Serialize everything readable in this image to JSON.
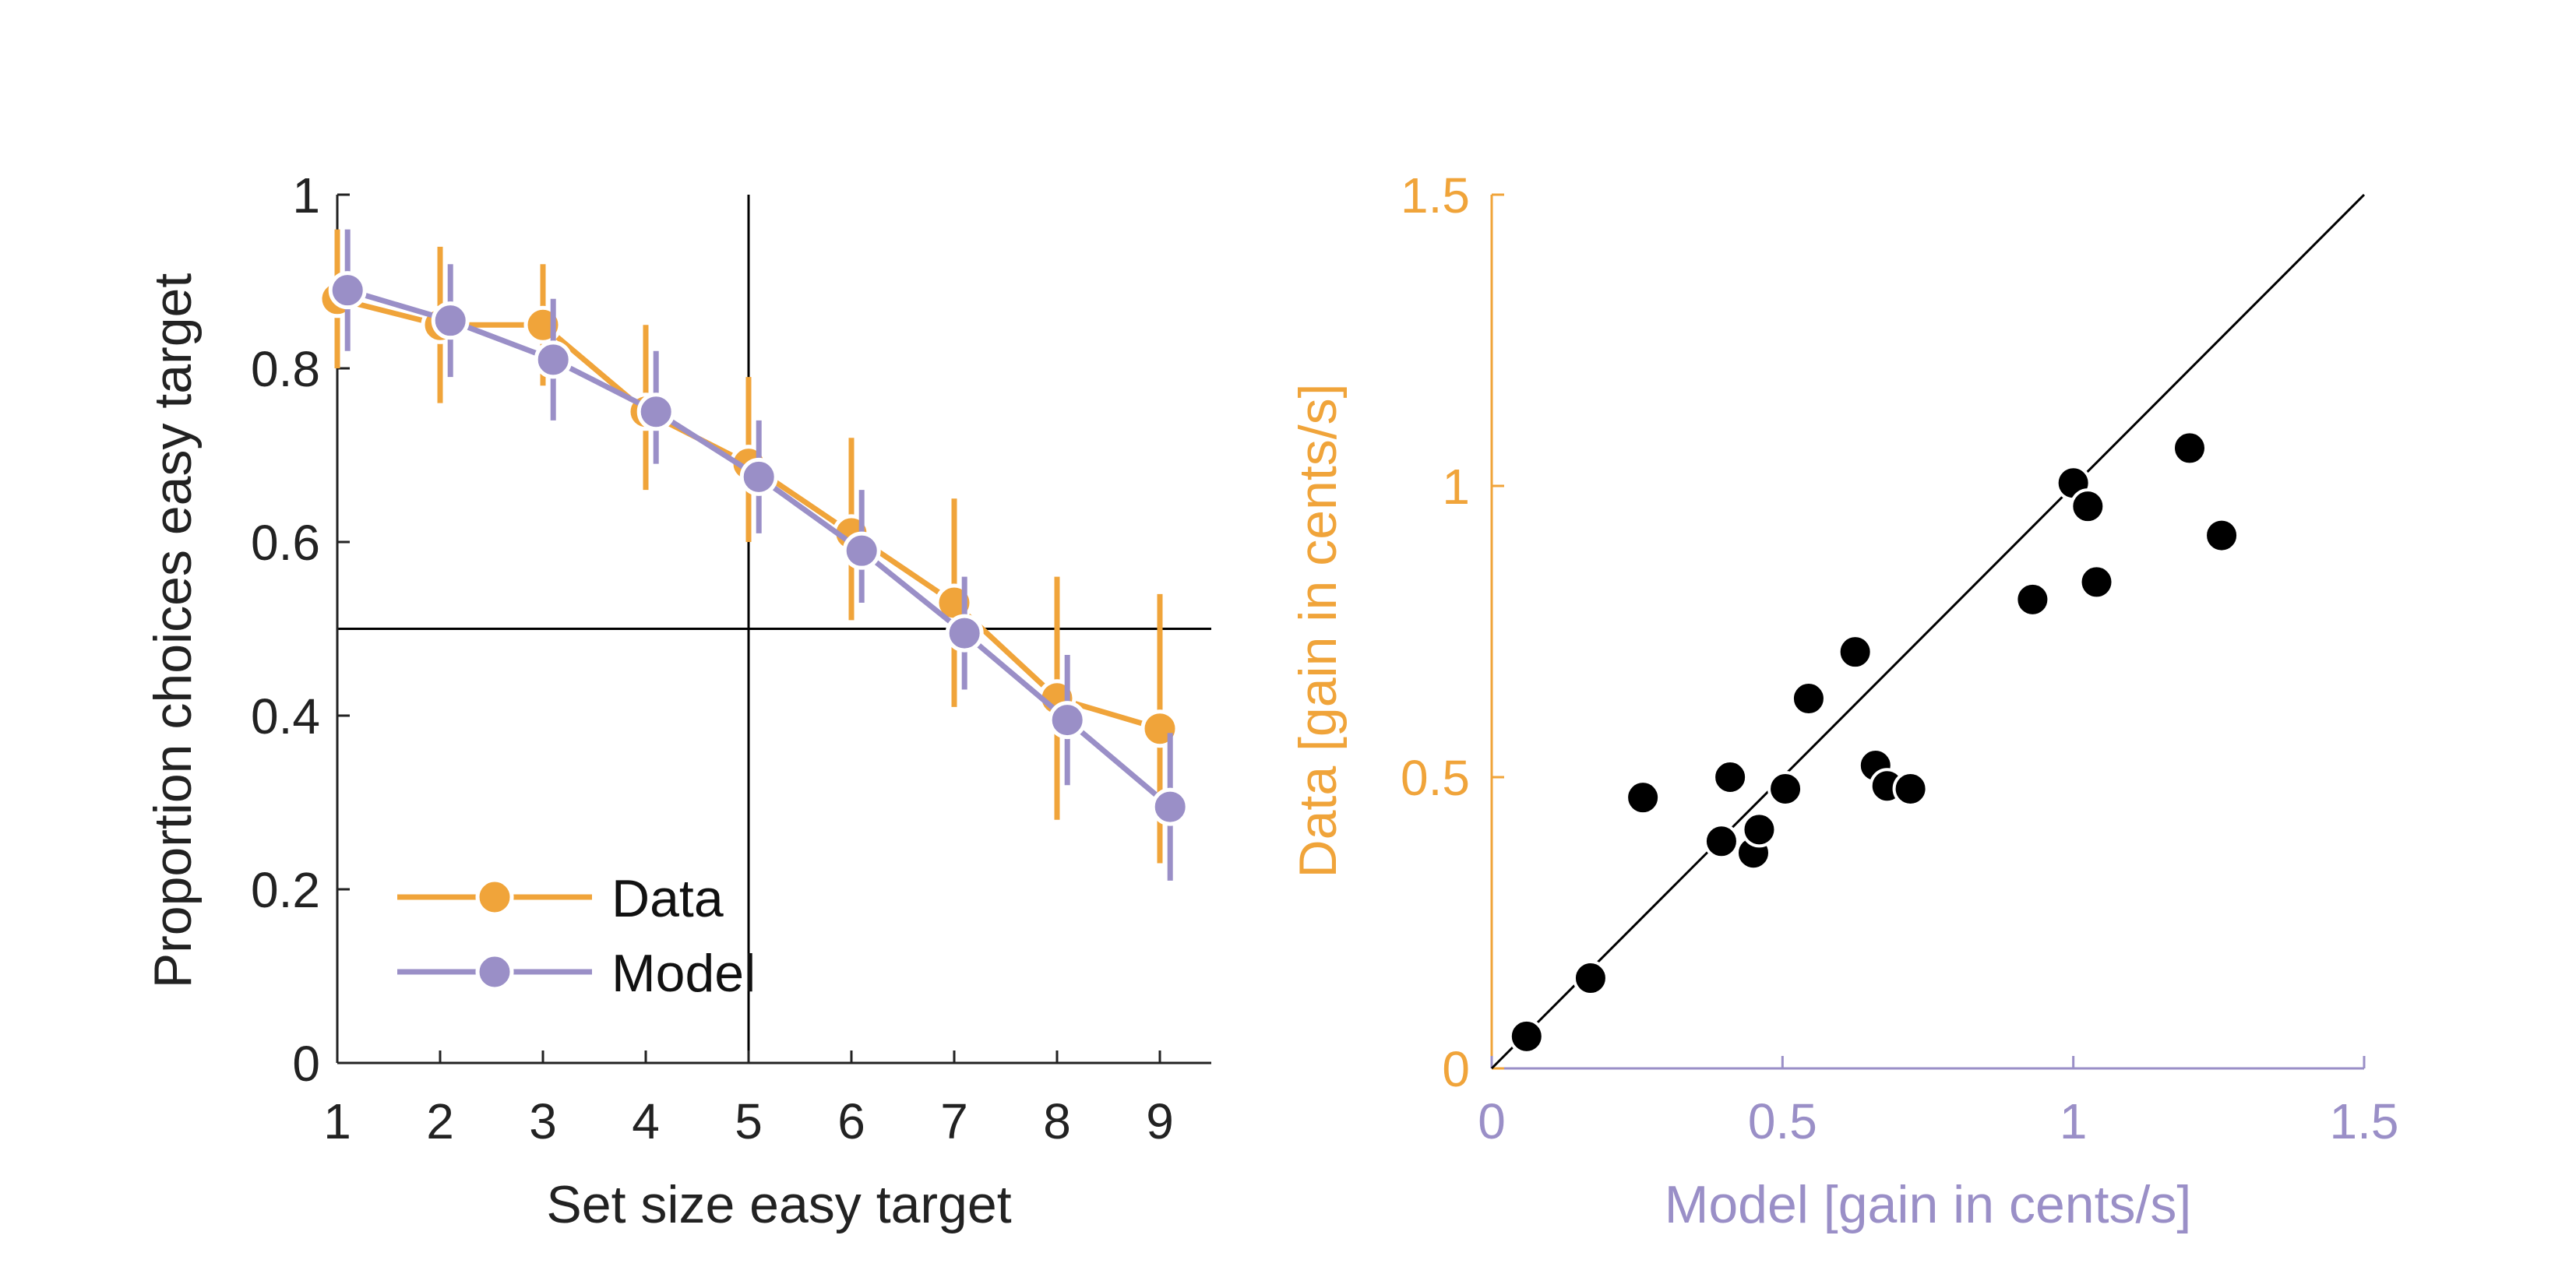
{
  "colors": {
    "data": "#F0A43A",
    "model": "#9A8FC7",
    "axis": "#222222",
    "points": "#000000"
  },
  "chart_data": [
    {
      "type": "line",
      "xlabel": "Set size easy target",
      "ylabel": "Proportion choices easy target",
      "xlim": [
        1,
        9.4
      ],
      "ylim": [
        0,
        1
      ],
      "x_ticks": [
        "1",
        "2",
        "3",
        "4",
        "5",
        "6",
        "7",
        "8",
        "9"
      ],
      "y_ticks": [
        "0",
        "0.2",
        "0.4",
        "0.6",
        "0.8",
        "1"
      ],
      "reference_lines": {
        "x": 5,
        "y": 0.5
      },
      "legend_position": "bottom-left",
      "series": [
        {
          "name": "Data",
          "x": [
            1,
            2,
            3,
            4,
            5,
            6,
            7,
            8,
            9
          ],
          "y": [
            0.88,
            0.85,
            0.85,
            0.75,
            0.69,
            0.61,
            0.53,
            0.42,
            0.385
          ],
          "err_low": [
            0.8,
            0.76,
            0.78,
            0.66,
            0.6,
            0.51,
            0.41,
            0.28,
            0.23
          ],
          "err_high": [
            0.96,
            0.94,
            0.92,
            0.85,
            0.79,
            0.72,
            0.65,
            0.56,
            0.54
          ]
        },
        {
          "name": "Model",
          "x": [
            1.1,
            2.1,
            3.1,
            4.1,
            5.1,
            6.1,
            7.1,
            8.1,
            9.1
          ],
          "y": [
            0.89,
            0.855,
            0.81,
            0.75,
            0.675,
            0.59,
            0.495,
            0.395,
            0.295
          ],
          "err_low": [
            0.82,
            0.79,
            0.74,
            0.69,
            0.61,
            0.53,
            0.43,
            0.32,
            0.21
          ],
          "err_high": [
            0.96,
            0.92,
            0.88,
            0.82,
            0.74,
            0.66,
            0.56,
            0.47,
            0.38
          ]
        }
      ]
    },
    {
      "type": "scatter",
      "xlabel": "Model [gain in cents/s]",
      "ylabel": "Data [gain in cents/s]",
      "xlim": [
        0,
        1.5
      ],
      "ylim": [
        0,
        1.5
      ],
      "x_ticks": [
        "0",
        "0.5",
        "1",
        "1.5"
      ],
      "y_ticks": [
        "0",
        "0.5",
        "1",
        "1.5"
      ],
      "identity_line": true,
      "points": [
        {
          "x": 0.06,
          "y": 0.055
        },
        {
          "x": 0.17,
          "y": 0.155
        },
        {
          "x": 0.26,
          "y": 0.465
        },
        {
          "x": 0.395,
          "y": 0.39
        },
        {
          "x": 0.41,
          "y": 0.5
        },
        {
          "x": 0.45,
          "y": 0.37
        },
        {
          "x": 0.46,
          "y": 0.41
        },
        {
          "x": 0.505,
          "y": 0.48
        },
        {
          "x": 0.545,
          "y": 0.635
        },
        {
          "x": 0.625,
          "y": 0.715
        },
        {
          "x": 0.66,
          "y": 0.52
        },
        {
          "x": 0.68,
          "y": 0.485
        },
        {
          "x": 0.72,
          "y": 0.48
        },
        {
          "x": 0.93,
          "y": 0.805
        },
        {
          "x": 1.0,
          "y": 1.005
        },
        {
          "x": 1.025,
          "y": 0.965
        },
        {
          "x": 1.04,
          "y": 0.835
        },
        {
          "x": 1.2,
          "y": 1.065
        },
        {
          "x": 1.255,
          "y": 0.915
        }
      ]
    }
  ]
}
